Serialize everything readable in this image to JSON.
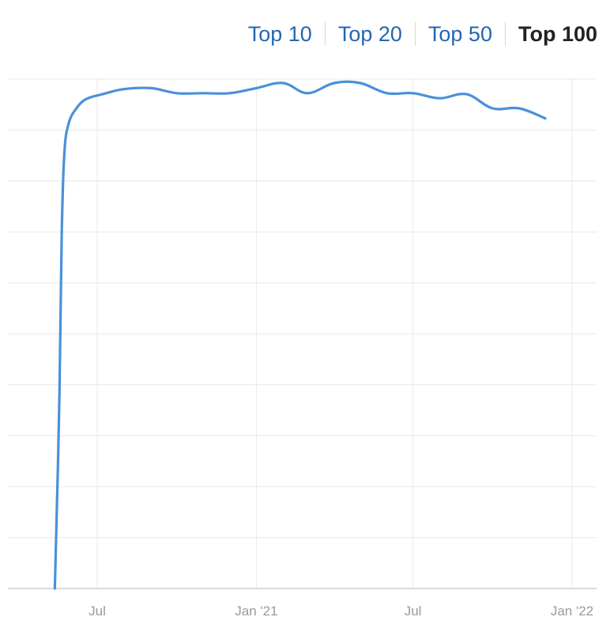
{
  "tabs": [
    {
      "label": "Top 10",
      "active": false
    },
    {
      "label": "Top 20",
      "active": false
    },
    {
      "label": "Top 50",
      "active": false
    },
    {
      "label": "Top 100",
      "active": true
    }
  ],
  "colors": {
    "line": "#4a90d9",
    "grid": "#e8e8e8",
    "axis": "#d0d0d0",
    "tab_link": "#2566b0",
    "tab_active": "#222222"
  },
  "chart_data": {
    "type": "line",
    "title": "",
    "xlabel": "",
    "ylabel": "",
    "x_ticks": [
      {
        "label": "Jul",
        "value": "2020-07-01"
      },
      {
        "label": "Jan '21",
        "value": "2021-01-01"
      },
      {
        "label": "Jul",
        "value": "2021-07-01"
      },
      {
        "label": "Jan '22",
        "value": "2022-01-01"
      }
    ],
    "ylim": [
      0,
      10
    ],
    "y_tick_labels_shown": false,
    "grid": true,
    "series": [
      {
        "points": [
          [
            "2020-05-13",
            0.0
          ],
          [
            "2020-05-18",
            3.5
          ],
          [
            "2020-05-21",
            7.0
          ],
          [
            "2020-05-24",
            8.6
          ],
          [
            "2020-05-29",
            9.2
          ],
          [
            "2020-06-07",
            9.5
          ],
          [
            "2020-06-18",
            9.68
          ],
          [
            "2020-07-07",
            9.78
          ],
          [
            "2020-08-01",
            9.88
          ],
          [
            "2020-09-01",
            9.9
          ],
          [
            "2020-10-01",
            9.8
          ],
          [
            "2020-11-01",
            9.8
          ],
          [
            "2020-12-01",
            9.8
          ],
          [
            "2021-01-01",
            9.9
          ],
          [
            "2021-02-01",
            10.0
          ],
          [
            "2021-03-01",
            9.8
          ],
          [
            "2021-04-01",
            10.0
          ],
          [
            "2021-05-01",
            10.0
          ],
          [
            "2021-06-01",
            9.8
          ],
          [
            "2021-07-01",
            9.8
          ],
          [
            "2021-08-01",
            9.7
          ],
          [
            "2021-09-01",
            9.78
          ],
          [
            "2021-10-01",
            9.5
          ],
          [
            "2021-11-01",
            9.5
          ],
          [
            "2021-12-01",
            9.3
          ]
        ]
      }
    ]
  }
}
